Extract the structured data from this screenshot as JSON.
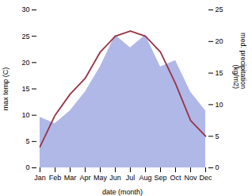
{
  "chart_data": {
    "type": "line",
    "xlabel": "date (month)",
    "ylabel": "max temp (C)",
    "y2label": "med. precipitation\n(kg/m2)",
    "categories": [
      "Jan",
      "Feb",
      "Mar",
      "Apr",
      "May",
      "Jun",
      "Jul",
      "Aug",
      "Sep",
      "Oct",
      "Nov",
      "Dec"
    ],
    "series": [
      {
        "type": "area",
        "axis": "y2",
        "color": "#b0b8e8",
        "values": [
          8,
          7,
          9,
          12,
          16,
          21,
          19,
          21,
          16,
          17,
          12,
          9
        ]
      },
      {
        "type": "line",
        "color": "#993344",
        "values": [
          4,
          10,
          14,
          17,
          22,
          25,
          26,
          25,
          22,
          16,
          9,
          6
        ]
      }
    ],
    "ylim": [
      0,
      30
    ],
    "yticks": [
      0,
      5,
      10,
      15,
      20,
      25,
      30
    ],
    "y2lim": [
      0,
      25
    ],
    "y2ticks": [
      0,
      5,
      10,
      15,
      20,
      25
    ],
    "grid": false
  }
}
